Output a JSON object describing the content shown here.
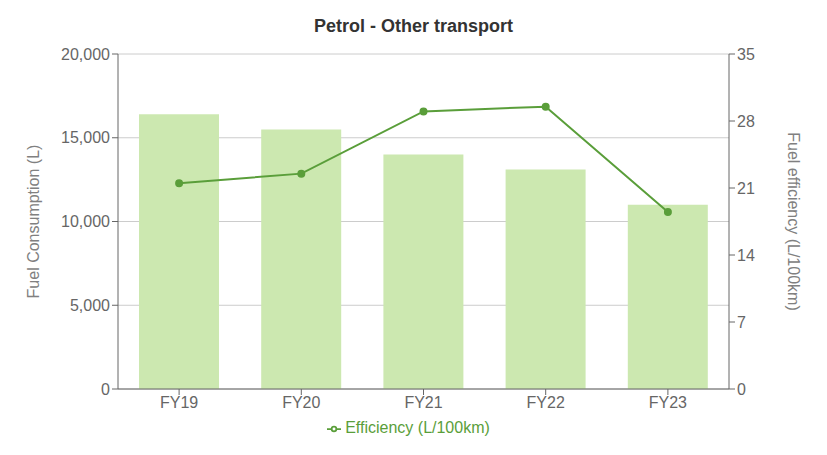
{
  "chart_data": {
    "type": "bar",
    "title": "Petrol - Other transport",
    "categories": [
      "FY19",
      "FY20",
      "FY21",
      "FY22",
      "FY23"
    ],
    "series": [
      {
        "type": "bar",
        "color": "#cce8b0",
        "values": [
          16400,
          15500,
          14000,
          13100,
          11000
        ]
      },
      {
        "name": "Efficiency (L/100km)",
        "type": "line",
        "axis": "y2",
        "color": "#5a9e3a",
        "marker": "circle",
        "values": [
          21.5,
          22.5,
          29.0,
          29.5,
          18.5
        ]
      }
    ],
    "ylabel": "Fuel Consumption (L)",
    "y2label": "Fuel efficiency (L/100km)",
    "ylim": [
      0,
      20000
    ],
    "yticks": [
      0,
      {
        "value": 5000,
        "label": "5,000"
      },
      {
        "value": 10000,
        "label": "10,000"
      },
      {
        "value": 15000,
        "label": "15,000"
      },
      {
        "value": 20000,
        "label": "20,000"
      }
    ],
    "y2lim": [
      0,
      35
    ],
    "y2ticks": [
      0,
      7,
      14,
      21,
      28,
      35
    ],
    "grid": true,
    "legend": "bottom"
  }
}
